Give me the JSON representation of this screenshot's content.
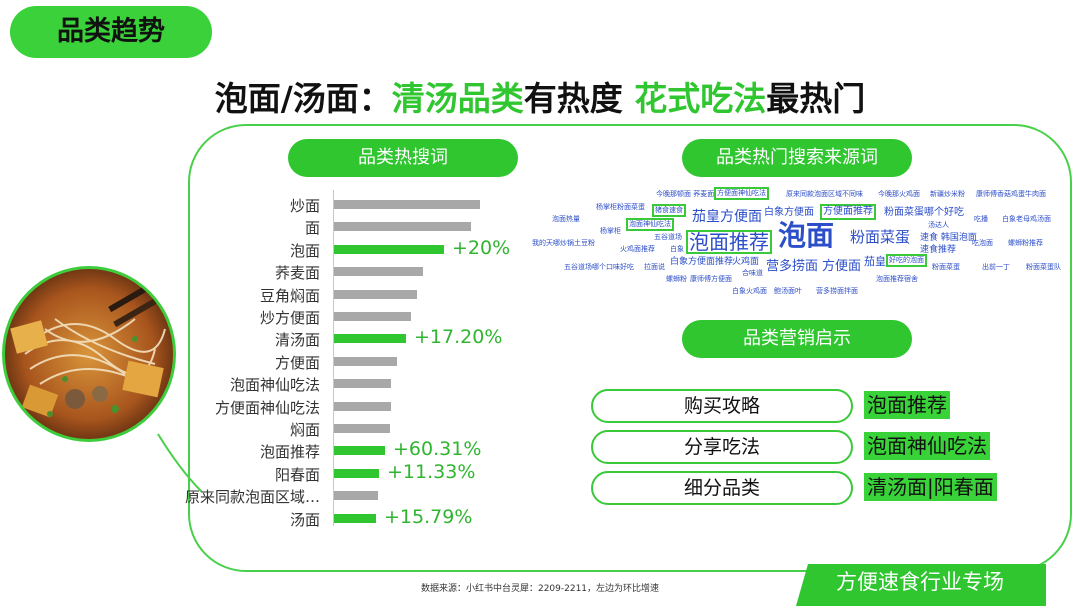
{
  "tag_label": "品类趋势",
  "headline": {
    "part1": "泡面/汤面：",
    "part2": "清汤品类",
    "part3": "有热度 ",
    "part4": "花式吃法",
    "part5": "最热门"
  },
  "colors": {
    "accent": "#2fc62f",
    "bar_gray": "#a8a8a8",
    "cloud_blue": "#2c4ec9"
  },
  "left_section": {
    "title": "品类热搜词",
    "keywords": [
      {
        "label": "炒面",
        "value": 0.97,
        "highlight": false,
        "change": ""
      },
      {
        "label": "面",
        "value": 0.91,
        "highlight": false,
        "change": ""
      },
      {
        "label": "泡面",
        "value": 0.73,
        "highlight": true,
        "change": "+20%"
      },
      {
        "label": "荞麦面",
        "value": 0.59,
        "highlight": false,
        "change": ""
      },
      {
        "label": "豆角焖面",
        "value": 0.55,
        "highlight": false,
        "change": ""
      },
      {
        "label": "炒方便面",
        "value": 0.51,
        "highlight": false,
        "change": ""
      },
      {
        "label": "清汤面",
        "value": 0.48,
        "highlight": true,
        "change": "+17.20%"
      },
      {
        "label": "方便面",
        "value": 0.42,
        "highlight": false,
        "change": ""
      },
      {
        "label": "泡面神仙吃法",
        "value": 0.38,
        "highlight": false,
        "change": ""
      },
      {
        "label": "方便面神仙吃法",
        "value": 0.38,
        "highlight": false,
        "change": ""
      },
      {
        "label": "焖面",
        "value": 0.37,
        "highlight": false,
        "change": ""
      },
      {
        "label": "泡面推荐",
        "value": 0.34,
        "highlight": true,
        "change": "+60.31%"
      },
      {
        "label": "阳春面",
        "value": 0.3,
        "highlight": true,
        "change": "+11.33%"
      },
      {
        "label": "原来同款泡面区域…",
        "value": 0.29,
        "highlight": false,
        "change": ""
      },
      {
        "label": "汤面",
        "value": 0.28,
        "highlight": true,
        "change": "+15.79%"
      }
    ]
  },
  "right_section": {
    "title": "品类热门搜索来源词",
    "cloud_words": [
      "今晚那顿面 荞麦面",
      "方便面神仙吃法",
      "原来同款泡面区域不同味",
      "今晚那火鸡面",
      "新疆炒米粉",
      "康师傅香菇鸡蛋牛肉面",
      "杨掌柜粉面菜蛋",
      "猪食速食",
      "茄皇方便面",
      "白象方便面",
      "方便面推荐",
      "粉面菜蛋哪个好吃",
      "泡面热量",
      "泡面神仙吃法",
      "汤达人",
      "吃播",
      "白象老母鸡汤面",
      "杨掌柜",
      "五谷道场",
      "泡面推荐",
      "泡面",
      "粉面菜蛋",
      "速食 韩国泡面",
      "我的天哪炒锅土豆粉",
      "火鸡面推荐",
      "白象",
      "速食推荐",
      "吃泡面",
      "螺蛳粉推荐",
      "五谷道场哪个口味好吃",
      "拉面说",
      "白象方便面推荐",
      "火鸡面",
      "营多捞面",
      "方便面",
      "茄皇",
      "好吃的泡面",
      "粉面菜蛋",
      "出前一丁",
      "粉面菜蛋队",
      "合味道",
      "螺蛳粉",
      "康师傅方便面",
      "泡面推荐宿舍",
      "白象火鸡面",
      "鲍汤面叶",
      "营多捞面拌面"
    ],
    "big_words": [
      "泡面推荐",
      "泡面",
      "粉面菜蛋",
      "方便面",
      "营多捞面"
    ],
    "marketing_title": "品类营销启示",
    "insights": [
      {
        "label": "购买攻略",
        "keyword": "泡面推荐"
      },
      {
        "label": "分享吃法",
        "keyword": "泡面神仙吃法"
      },
      {
        "label": "细分品类",
        "keyword": "清汤面|阳春面"
      }
    ]
  },
  "footer": {
    "source": "数据来源：小红书中台灵犀：2209-2211，左边为环比增速",
    "corner_label": "方便速食行业专场"
  }
}
